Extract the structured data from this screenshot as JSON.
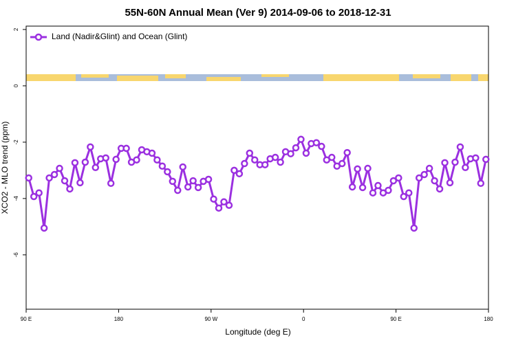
{
  "chart_data": {
    "type": "line",
    "title": "55N-60N Annual Mean (Ver 9)   2014-09-06 to 2018-12-31",
    "x_label": "Longitude (deg E)",
    "y_label": "XCO2 - MLO trend (ppm)",
    "x": [
      92.5,
      97.5,
      102.5,
      107.5,
      112.5,
      117.5,
      122.5,
      127.5,
      132.5,
      137.5,
      142.5,
      147.5,
      152.5,
      157.5,
      162.5,
      167.5,
      172.5,
      177.5,
      182.5,
      187.5,
      192.5,
      197.5,
      202.5,
      207.5,
      212.5,
      217.5,
      222.5,
      227.5,
      232.5,
      237.5,
      242.5,
      247.5,
      252.5,
      257.5,
      262.5,
      267.5,
      272.5,
      277.5,
      282.5,
      287.5,
      292.5,
      297.5,
      302.5,
      307.5,
      312.5,
      317.5,
      322.5,
      327.5,
      332.5,
      337.5,
      342.5,
      347.5,
      352.5,
      357.5,
      362.5,
      367.5,
      372.5,
      377.5,
      382.5,
      387.5,
      392.5,
      397.5,
      402.5,
      407.5,
      412.5,
      417.5,
      422.5,
      427.5,
      432.5,
      437.5,
      442.5,
      447.5,
      452.5,
      457.5,
      462.5,
      467.5,
      472.5,
      477.5,
      482.5,
      487.5,
      492.5,
      497.5,
      502.5,
      507.5,
      512.5,
      517.5,
      522.5,
      527.5,
      532.5,
      537.5
    ],
    "series": [
      {
        "name": "Land (Nadir&Glint) and Ocean (Glint)",
        "color": "#9b30e0",
        "values": [
          -3.27,
          -3.93,
          -3.8,
          -5.05,
          -3.27,
          -3.15,
          -2.93,
          -3.37,
          -3.66,
          -2.73,
          -3.44,
          -2.71,
          -2.17,
          -2.9,
          -2.59,
          -2.56,
          -3.46,
          -2.61,
          -2.22,
          -2.22,
          -2.71,
          -2.63,
          -2.27,
          -2.34,
          -2.39,
          -2.63,
          -2.85,
          -3.05,
          -3.39,
          -3.71,
          -2.88,
          -3.59,
          -3.37,
          -3.61,
          -3.39,
          -3.32,
          -4.02,
          -4.34,
          -4.12,
          -4.24,
          -3.0,
          -3.12,
          -2.76,
          -2.39,
          -2.63,
          -2.8,
          -2.8,
          -2.59,
          -2.54,
          -2.71,
          -2.34,
          -2.41,
          -2.2,
          -1.9,
          -2.39,
          -2.05,
          -2.02,
          -2.15,
          -2.63,
          -2.54,
          -2.85,
          -2.76,
          -2.37,
          -3.59,
          -2.95,
          -3.61,
          -2.93,
          -3.8,
          -3.54,
          -3.8,
          -3.71,
          -3.37,
          -3.27,
          -3.93,
          -3.8,
          -5.05,
          -3.27,
          -3.15,
          -2.93,
          -3.37,
          -3.66,
          -2.73,
          -3.44,
          -2.71,
          -2.17,
          -2.9,
          -2.59,
          -2.56,
          -3.46,
          -2.61
        ]
      }
    ],
    "xlim": [
      90,
      540
    ],
    "xticks": [
      {
        "value": 90,
        "label": "90 E"
      },
      {
        "value": 180,
        "label": "180"
      },
      {
        "value": 270,
        "label": "90 W"
      },
      {
        "value": 360,
        "label": "0"
      },
      {
        "value": 450,
        "label": "90 E"
      },
      {
        "value": 540,
        "label": "180"
      }
    ],
    "ylim": [
      -7.93,
      2.12
    ],
    "yticks": [
      -6,
      -4,
      -2,
      0,
      2
    ],
    "legend": "upper left"
  }
}
